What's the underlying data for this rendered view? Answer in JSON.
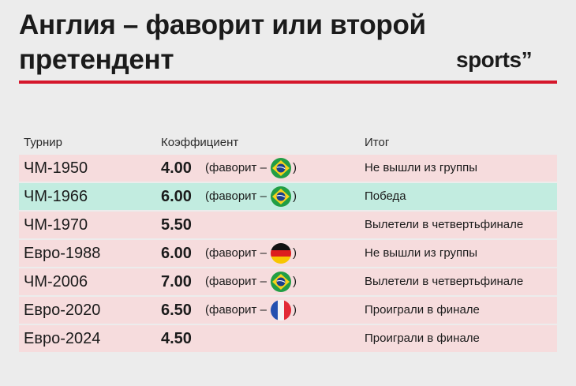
{
  "title": "Англия – фаворит или второй претендент",
  "logo": "sports”",
  "headers": {
    "tournament": "Турнир",
    "odds": "Коэффициент",
    "result": "Итог"
  },
  "favorite_prefix": "(фаворит –",
  "favorite_suffix": ")",
  "rows": [
    {
      "tournament": "ЧМ-1950",
      "odds": "4.00",
      "favorite_flag": "brazil-flag-icon",
      "result": "Не вышли из группы",
      "highlight": false
    },
    {
      "tournament": "ЧМ-1966",
      "odds": "6.00",
      "favorite_flag": "brazil-flag-icon",
      "result": "Победа",
      "highlight": true
    },
    {
      "tournament": "ЧМ-1970",
      "odds": "5.50",
      "favorite_flag": null,
      "result": "Вылетели в четвертьфинале",
      "highlight": false
    },
    {
      "tournament": "Евро-1988",
      "odds": "6.00",
      "favorite_flag": "germany-flag-icon",
      "result": "Не вышли из группы",
      "highlight": false
    },
    {
      "tournament": "ЧМ-2006",
      "odds": "7.00",
      "favorite_flag": "brazil-flag-icon",
      "result": "Вылетели в четвертьфинале",
      "highlight": false
    },
    {
      "tournament": "Евро-2020",
      "odds": "6.50",
      "favorite_flag": "france-flag-icon",
      "result": "Проиграли в финале",
      "highlight": false
    },
    {
      "tournament": "Евро-2024",
      "odds": "4.50",
      "favorite_flag": null,
      "result": "Проиграли в финале",
      "highlight": false
    }
  ],
  "colors": {
    "accent": "#d5162b",
    "row_default": "#f6dcdd",
    "row_highlight": "#c2ece0",
    "background": "#ececec"
  }
}
